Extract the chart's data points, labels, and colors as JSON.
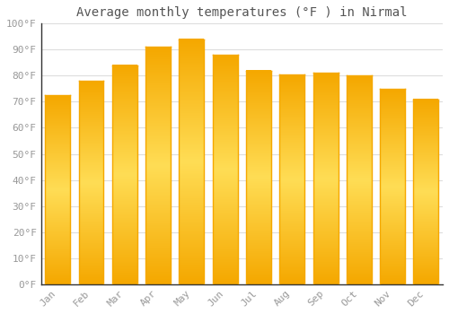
{
  "title": "Average monthly temperatures (°F ) in Nirmal",
  "months": [
    "Jan",
    "Feb",
    "Mar",
    "Apr",
    "May",
    "Jun",
    "Jul",
    "Aug",
    "Sep",
    "Oct",
    "Nov",
    "Dec"
  ],
  "values": [
    72.5,
    78,
    84,
    91,
    94,
    88,
    82,
    80.5,
    81,
    80,
    75,
    71
  ],
  "bar_color_left": "#F5A800",
  "bar_color_center": "#FFD966",
  "bar_color_right": "#F5A800",
  "background_color": "#FFFFFF",
  "grid_color": "#DDDDDD",
  "ylim": [
    0,
    100
  ],
  "ytick_step": 10,
  "title_fontsize": 10,
  "tick_fontsize": 8,
  "font_family": "monospace",
  "tick_color": "#999999",
  "title_color": "#555555"
}
